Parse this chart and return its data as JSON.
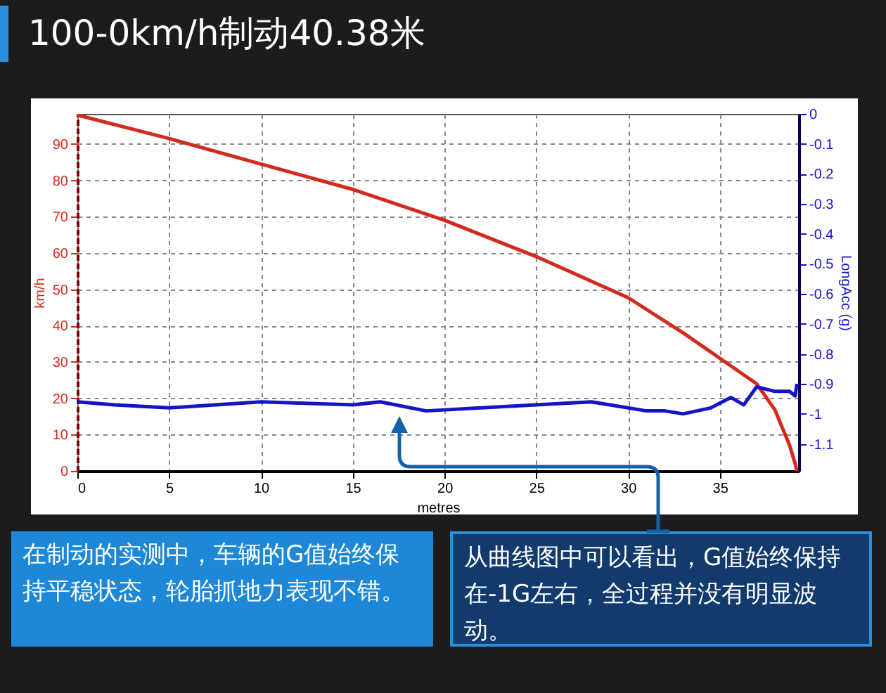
{
  "chart_data": {
    "type": "line",
    "title": "100-0km/h制动40.38米",
    "xlabel": "metres",
    "ylabel": "km/h",
    "y2label": "LongAcc (g)",
    "annotations": [
      "在制动的实测中，车辆的G值始终保持平稳状态，轮胎抓地力表现不错。",
      "从曲线图中可以看出，G值始终保持在-1G左右，全过程并没有明显波动。"
    ],
    "series": [
      {
        "color": "#d42a1e",
        "x": [
          0,
          5,
          10,
          15,
          20,
          25,
          30,
          33,
          35,
          37,
          38,
          38.8,
          39.1,
          39.2
        ],
        "values": [
          98,
          91.5,
          84.5,
          77.5,
          69,
          59,
          47.7,
          38,
          31,
          24,
          16.8,
          7,
          2,
          0
        ]
      },
      {
        "color": "#1414c8",
        "axis": "y2",
        "x": [
          0,
          2,
          5,
          10,
          15,
          16.5,
          19,
          22,
          25,
          28,
          29,
          31,
          32,
          33,
          34.5,
          35.6,
          36.3,
          37,
          38,
          38.8,
          39.1,
          39.2
        ],
        "values": [
          -0.96,
          -0.97,
          -0.98,
          -0.96,
          -0.97,
          -0.96,
          -0.99,
          -0.98,
          -0.97,
          -0.96,
          -0.97,
          -0.99,
          -0.99,
          -1.0,
          -0.98,
          -0.945,
          -0.97,
          -0.91,
          -0.925,
          -0.925,
          -0.94,
          -0.9
        ]
      }
    ],
    "xlim": [
      0,
      39.3
    ],
    "xticks": [
      0,
      5,
      10,
      15,
      20,
      25,
      30,
      35
    ],
    "ylim": [
      0,
      98.3
    ],
    "yticks": [
      0,
      10,
      20,
      30,
      40,
      50,
      60,
      70,
      80,
      90
    ],
    "y2lim": [
      -1.19,
      0
    ],
    "y2ticks": [
      0,
      -0.1,
      -0.2,
      -0.3,
      -0.4,
      -0.5,
      -0.6,
      -0.7,
      -0.8,
      -0.9,
      -1,
      -1.1
    ],
    "grid": true
  }
}
